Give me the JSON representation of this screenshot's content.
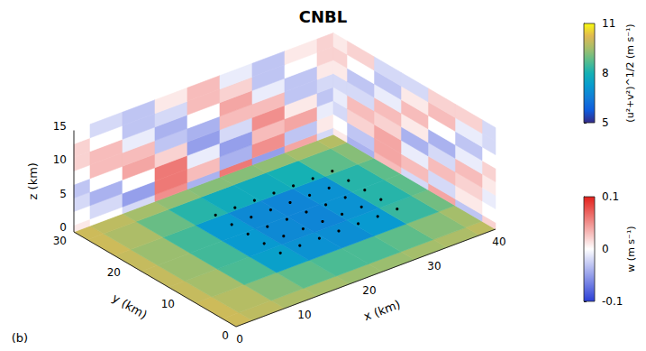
{
  "chart_data": {
    "type": "slices3d",
    "title": "CNBL",
    "panel_label": "(b)",
    "xlabel": "x (km)",
    "ylabel": "y (km)",
    "zlabel": "z (km)",
    "xlim": [
      0,
      40
    ],
    "xticks": [
      0,
      10,
      20,
      30,
      40
    ],
    "ylim": [
      0,
      30
    ],
    "yticks": [
      0,
      10,
      20,
      30
    ],
    "zlim": [
      0,
      15
    ],
    "zticks": [
      0,
      5,
      10,
      15
    ],
    "speed": {
      "label": "(u²+v²)^1/2 (m s⁻¹)",
      "range": [
        5,
        11
      ],
      "ticks": [
        5,
        8,
        11
      ],
      "x": [
        0,
        5,
        10,
        15,
        20,
        25,
        30,
        35,
        40
      ],
      "y": [
        0,
        5,
        10,
        15,
        20,
        25,
        30
      ],
      "values": [
        [
          10,
          9.8,
          9.6,
          9.5,
          9.4,
          9.4,
          9.5,
          9.6,
          9.8
        ],
        [
          10,
          9.7,
          9.2,
          8.8,
          8.6,
          8.6,
          8.8,
          9.2,
          9.5
        ],
        [
          9.9,
          9.5,
          8.6,
          7.4,
          7.0,
          6.9,
          7.2,
          8.4,
          9.0
        ],
        [
          9.9,
          9.4,
          8.5,
          7.2,
          6.8,
          6.7,
          7.0,
          8.2,
          8.8
        ],
        [
          9.9,
          9.4,
          8.5,
          7.2,
          6.8,
          6.7,
          7.0,
          8.2,
          8.8
        ],
        [
          10,
          9.6,
          8.9,
          8.2,
          7.8,
          7.8,
          8.0,
          8.8,
          9.2
        ],
        [
          10,
          9.8,
          9.5,
          9.3,
          9.2,
          9.2,
          9.3,
          9.5,
          9.7
        ]
      ]
    },
    "w": {
      "label": "w (m s⁻¹)",
      "range": [
        -0.1,
        0.1
      ],
      "ticks": [
        -0.1,
        0,
        0.1
      ],
      "xz_slice": {
        "y": 30,
        "x": [
          0,
          5,
          10,
          15,
          20,
          25,
          30,
          35,
          40
        ],
        "z": [
          0,
          2,
          4,
          6,
          8,
          10,
          12,
          14
        ],
        "values": [
          [
            0.01,
            0.0,
            -0.02,
            0.05,
            -0.04,
            0.06,
            -0.05,
            0.04,
            -0.02
          ],
          [
            0.0,
            -0.02,
            -0.05,
            0.06,
            0.03,
            -0.04,
            0.05,
            -0.03,
            0.01
          ],
          [
            -0.02,
            -0.04,
            0.0,
            0.06,
            -0.01,
            -0.05,
            0.03,
            0.04,
            -0.01
          ],
          [
            -0.03,
            0.0,
            0.04,
            0.02,
            -0.05,
            -0.02,
            0.05,
            0.01,
            -0.03
          ],
          [
            0.0,
            0.03,
            0.03,
            -0.03,
            -0.04,
            0.03,
            0.03,
            -0.03,
            -0.02
          ],
          [
            0.02,
            0.03,
            -0.01,
            -0.04,
            0.0,
            0.04,
            -0.01,
            -0.03,
            0.01
          ],
          [
            0.02,
            0.0,
            -0.03,
            -0.02,
            0.03,
            0.02,
            -0.03,
            0.0,
            0.02
          ],
          [
            0.0,
            -0.02,
            -0.03,
            0.01,
            0.03,
            -0.01,
            -0.03,
            0.01,
            0.02
          ]
        ]
      },
      "yz_slice": {
        "x": 40,
        "y": [
          0,
          5,
          10,
          15,
          20,
          25,
          30
        ],
        "z": [
          0,
          2,
          4,
          6,
          8,
          10,
          12,
          14
        ],
        "values": [
          [
            0.02,
            -0.03,
            0.04,
            -0.02,
            0.03,
            -0.04,
            0.01
          ],
          [
            0.0,
            0.01,
            -0.02,
            0.03,
            0.04,
            -0.03,
            0.0
          ],
          [
            -0.01,
            0.02,
            0.03,
            -0.01,
            0.04,
            0.02,
            -0.02
          ],
          [
            0.01,
            0.03,
            -0.02,
            -0.04,
            0.02,
            0.03,
            -0.01
          ],
          [
            0.02,
            -0.01,
            -0.04,
            0.01,
            0.03,
            -0.02,
            -0.02
          ],
          [
            0.0,
            -0.03,
            0.0,
            0.03,
            -0.01,
            -0.03,
            0.01
          ],
          [
            -0.02,
            -0.01,
            0.03,
            0.01,
            -0.03,
            0.0,
            0.02
          ],
          [
            -0.02,
            0.02,
            0.02,
            -0.02,
            -0.02,
            0.02,
            0.01
          ]
        ]
      }
    },
    "turbines": [
      [
        16,
        11
      ],
      [
        19,
        11
      ],
      [
        22,
        11
      ],
      [
        25,
        11
      ],
      [
        28,
        11
      ],
      [
        31,
        11
      ],
      [
        34,
        11
      ],
      [
        16,
        14
      ],
      [
        19,
        14
      ],
      [
        22,
        14
      ],
      [
        25,
        14
      ],
      [
        28,
        14
      ],
      [
        31,
        14
      ],
      [
        34,
        14
      ],
      [
        16,
        17
      ],
      [
        19,
        17
      ],
      [
        22,
        17
      ],
      [
        25,
        17
      ],
      [
        28,
        17
      ],
      [
        31,
        17
      ],
      [
        34,
        17
      ],
      [
        16,
        20
      ],
      [
        19,
        20
      ],
      [
        22,
        20
      ],
      [
        25,
        20
      ],
      [
        28,
        20
      ],
      [
        31,
        20
      ],
      [
        34,
        20
      ],
      [
        16,
        23
      ],
      [
        19,
        23
      ],
      [
        22,
        23
      ],
      [
        25,
        23
      ],
      [
        28,
        23
      ],
      [
        31,
        23
      ],
      [
        34,
        23
      ]
    ]
  }
}
